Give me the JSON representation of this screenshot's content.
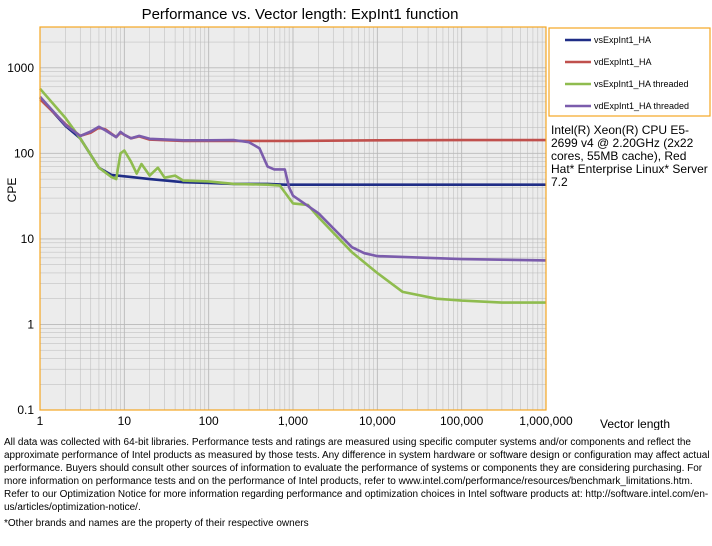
{
  "chart_data": {
    "type": "line",
    "title": "Performance vs. Vector length: ExpInt1 function",
    "xlabel": "Vector length",
    "ylabel": "CPE",
    "xscale": "log",
    "yscale": "log",
    "xlim": [
      1,
      1000000
    ],
    "ylim": [
      0.1,
      3000
    ],
    "x_ticks": [
      1,
      10,
      100,
      1000,
      10000,
      100000,
      1000000
    ],
    "x_tick_labels": [
      "1",
      "10",
      "100",
      "1,000",
      "10,000",
      "100,000",
      "1,000,000"
    ],
    "y_ticks": [
      0.1,
      1,
      10,
      100,
      1000
    ],
    "y_tick_labels": [
      "0.1",
      "1",
      "10",
      "100",
      "1000"
    ],
    "grid": true,
    "legend_position": "top-right",
    "series": [
      {
        "name": "vsExpInt1_HA",
        "color": "#1f2d86",
        "points": [
          [
            1,
            450
          ],
          [
            2,
            210
          ],
          [
            3,
            150
          ],
          [
            5,
            68
          ],
          [
            7,
            56
          ],
          [
            10,
            54
          ],
          [
            20,
            50
          ],
          [
            50,
            46
          ],
          [
            100,
            45
          ],
          [
            200,
            44
          ],
          [
            500,
            44
          ],
          [
            800,
            43
          ],
          [
            1000,
            43
          ],
          [
            3000,
            43
          ],
          [
            10000,
            43
          ],
          [
            100000,
            43
          ],
          [
            1000000,
            43
          ]
        ]
      },
      {
        "name": "vdExpInt1_HA",
        "color": "#c0504d",
        "points": [
          [
            1,
            430
          ],
          [
            2,
            220
          ],
          [
            3,
            160
          ],
          [
            4,
            175
          ],
          [
            5,
            200
          ],
          [
            6,
            190
          ],
          [
            8,
            155
          ],
          [
            9,
            175
          ],
          [
            10,
            165
          ],
          [
            12,
            150
          ],
          [
            15,
            158
          ],
          [
            20,
            145
          ],
          [
            50,
            140
          ],
          [
            100,
            140
          ],
          [
            200,
            140
          ],
          [
            500,
            140
          ],
          [
            1000,
            140
          ],
          [
            10000,
            142
          ],
          [
            100000,
            143
          ],
          [
            1000000,
            143
          ]
        ]
      },
      {
        "name": "vsExpInt1_HA threaded",
        "color": "#8fbc4f",
        "points": [
          [
            1,
            570
          ],
          [
            2,
            260
          ],
          [
            3,
            150
          ],
          [
            5,
            68
          ],
          [
            7,
            53
          ],
          [
            8,
            50
          ],
          [
            9,
            100
          ],
          [
            10,
            108
          ],
          [
            12,
            80
          ],
          [
            14,
            58
          ],
          [
            16,
            75
          ],
          [
            20,
            55
          ],
          [
            25,
            68
          ],
          [
            30,
            52
          ],
          [
            40,
            55
          ],
          [
            50,
            48
          ],
          [
            100,
            47
          ],
          [
            200,
            44
          ],
          [
            500,
            43
          ],
          [
            700,
            42
          ],
          [
            900,
            30
          ],
          [
            1000,
            26
          ],
          [
            1500,
            25
          ],
          [
            2000,
            18
          ],
          [
            5000,
            7
          ],
          [
            10000,
            4
          ],
          [
            20000,
            2.4
          ],
          [
            50000,
            2.0
          ],
          [
            100000,
            1.9
          ],
          [
            300000,
            1.8
          ],
          [
            1000000,
            1.8
          ]
        ]
      },
      {
        "name": "vdExpInt1_HA threaded",
        "color": "#7b5cac",
        "points": [
          [
            1,
            460
          ],
          [
            2,
            215
          ],
          [
            3,
            160
          ],
          [
            4,
            180
          ],
          [
            5,
            205
          ],
          [
            6,
            185
          ],
          [
            8,
            155
          ],
          [
            9,
            178
          ],
          [
            10,
            165
          ],
          [
            12,
            150
          ],
          [
            15,
            160
          ],
          [
            20,
            148
          ],
          [
            50,
            142
          ],
          [
            100,
            142
          ],
          [
            200,
            143
          ],
          [
            300,
            135
          ],
          [
            400,
            115
          ],
          [
            500,
            70
          ],
          [
            600,
            65
          ],
          [
            800,
            65
          ],
          [
            900,
            40
          ],
          [
            1000,
            32
          ],
          [
            2000,
            20
          ],
          [
            5000,
            8
          ],
          [
            7000,
            6.8
          ],
          [
            10000,
            6.3
          ],
          [
            100000,
            5.8
          ],
          [
            1000000,
            5.6
          ]
        ]
      }
    ]
  },
  "system_info": "Intel(R) Xeon(R) CPU E5-2699 v4 @ 2.20GHz (2x22 cores, 55MB cache), Red Hat* Enterprise Linux* Server 7.2",
  "disclaimer": "All data was collected with 64-bit libraries. Performance tests and ratings are measured using specific computer systems and/or components and reflect the approximate performance of Intel products as measured by those tests. Any difference in system hardware or software design or configuration may affect actual performance. Buyers should consult other sources of information to evaluate the performance of systems or components they are considering purchasing. For more information on performance tests and on the performance of Intel products, refer to www.intel.com/performance/resources/benchmark_limitations.htm. Refer to our Optimization Notice for more information regarding performance and optimization choices in Intel software products at: http://software.intel.com/en-us/articles/optimization-notice/.",
  "footnote": "*Other brands and names are the property of their respective owners",
  "colors": {
    "frame": "#f5a623",
    "plot_bg": "#ececec",
    "grid": "#b9b9b9"
  }
}
